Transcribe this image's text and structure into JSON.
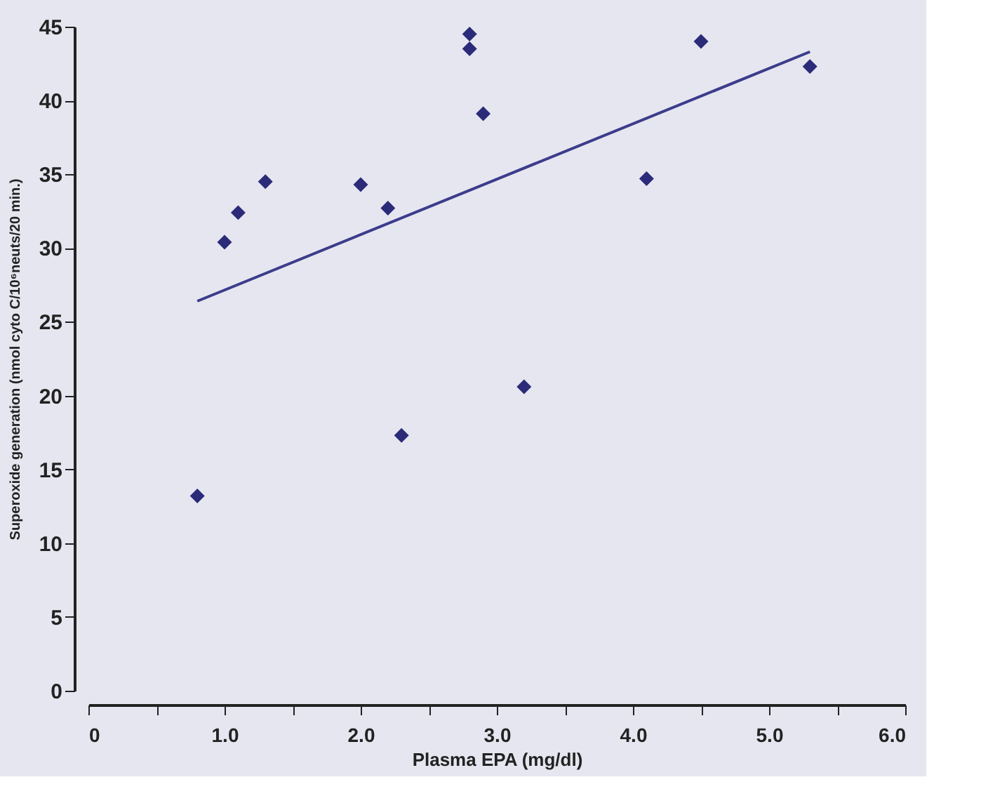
{
  "chart_data": {
    "type": "scatter",
    "xlabel": "Plasma EPA (mg/dl)",
    "ylabel": "Superoxide generation (nmol cyto C/10⁶neuts/20 min.)",
    "grid": false,
    "xlim": [
      0,
      6
    ],
    "ylim": [
      0,
      45
    ],
    "xticks": [
      0,
      {
        "value": 0.5,
        "label": null
      },
      {
        "value": 1,
        "label": "1.0"
      },
      {
        "value": 1.5,
        "label": null
      },
      {
        "value": 2,
        "label": "2.0"
      },
      {
        "value": 2.5,
        "label": null
      },
      {
        "value": 3,
        "label": "3.0"
      },
      {
        "value": 3.5,
        "label": null
      },
      {
        "value": 4,
        "label": "4.0"
      },
      {
        "value": 4.5,
        "label": null
      },
      {
        "value": 5,
        "label": "5.0"
      },
      {
        "value": 5.5,
        "label": null
      },
      {
        "value": 6,
        "label": "6.0"
      }
    ],
    "yticks": [
      0,
      5,
      10,
      15,
      20,
      25,
      30,
      35,
      40,
      45
    ],
    "series": [
      {
        "color": "#2b2b7a",
        "marker": "diamond",
        "x": [
          0.8,
          1.0,
          1.1,
          1.3,
          2.0,
          2.2,
          2.3,
          2.8,
          2.8,
          2.9,
          3.2,
          4.1,
          4.5,
          5.3
        ],
        "values": [
          13.2,
          30.4,
          32.4,
          34.5,
          34.3,
          32.7,
          17.3,
          44.5,
          43.5,
          39.1,
          20.6,
          34.7,
          44.0,
          42.3
        ]
      },
      {
        "type": "line",
        "marker": "none",
        "color": "#3c3c8c",
        "x": [
          0.8,
          5.3
        ],
        "values": [
          26.4,
          43.3
        ]
      }
    ]
  }
}
